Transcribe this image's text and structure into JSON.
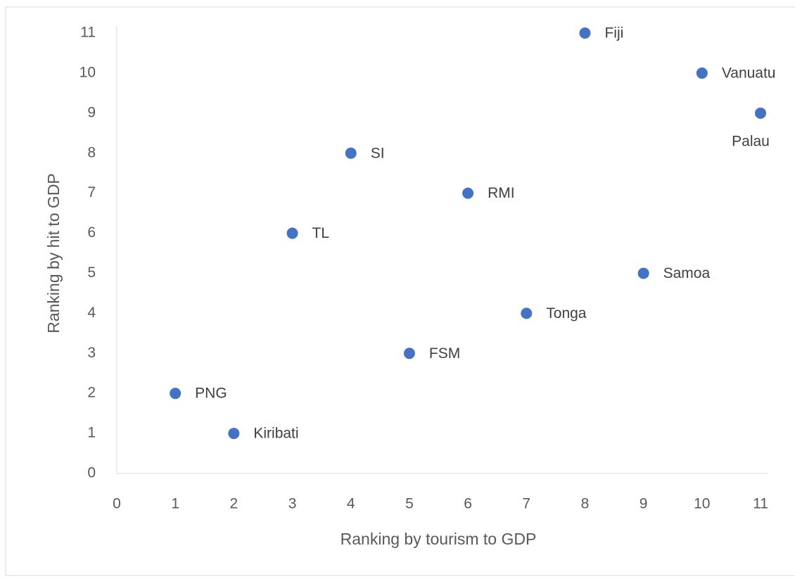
{
  "chart_data": {
    "type": "scatter",
    "x_label": "Ranking by tourism to GDP",
    "y_label": "Ranking by hit to GDP",
    "x": [
      1,
      2,
      3,
      4,
      5,
      6,
      7,
      8,
      9,
      10,
      11
    ],
    "series": [
      {
        "color": "#4472c4",
        "values": [
          2,
          1,
          6,
          8,
          3,
          7,
          4,
          11,
          5,
          10,
          9
        ],
        "labels": [
          "PNG",
          "Kiribati",
          "TL",
          "SI",
          "FSM",
          "RMI",
          "Tonga",
          "Fiji",
          "Samoa",
          "Vanuatu",
          "Palau"
        ]
      }
    ],
    "xlim": [
      0,
      11
    ],
    "xticks": [
      0,
      1,
      2,
      3,
      4,
      5,
      6,
      7,
      8,
      9,
      10,
      11
    ],
    "ylim": [
      0,
      11
    ],
    "yticks": [
      0,
      1,
      2,
      3,
      4,
      5,
      6,
      7,
      8,
      9,
      10,
      11
    ],
    "grid": false
  }
}
